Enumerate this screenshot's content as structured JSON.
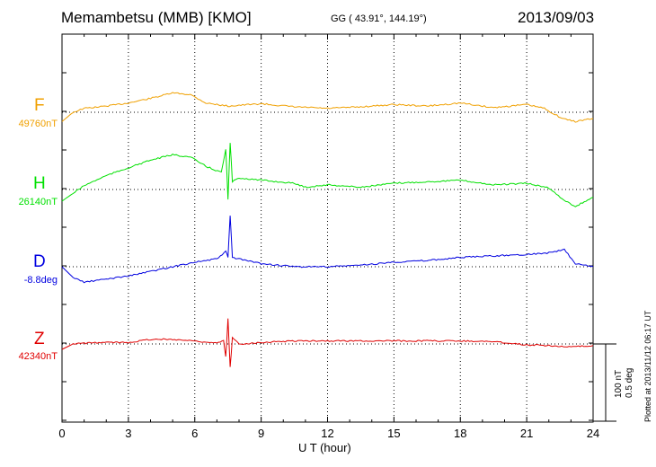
{
  "header": {
    "station": "Memambetsu (MMB)  [KMO]",
    "coords": "GG ( 43.91°, 144.19°)",
    "date": "2013/09/03"
  },
  "scale": {
    "nt_label": "100 nT",
    "deg_label": "0.5 deg"
  },
  "plotted": "Plotted at 2013/11/12 06:17 UT",
  "colors": {
    "F": "#f0a000",
    "H": "#00e000",
    "D": "#0000e0",
    "Z": "#e00000"
  },
  "chart_data": {
    "type": "line",
    "title": "Memambetsu (MMB)  [KMO]",
    "xlabel": "U T (hour)",
    "ylabel": "",
    "xlim": [
      0,
      24
    ],
    "x_ticks": [
      "0",
      "3",
      "6",
      "9",
      "12",
      "15",
      "18",
      "21",
      "24"
    ],
    "grid": true,
    "series": [
      {
        "name": "F",
        "baseline": "49760nT",
        "x": [
          0,
          0.5,
          1,
          2,
          3,
          4,
          5,
          5.8,
          6.5,
          7.5,
          9,
          10.5,
          12,
          13.5,
          15,
          16.5,
          18,
          19.5,
          21,
          21.8,
          22.6,
          23.2,
          24
        ],
        "values": [
          49748,
          49760,
          49765,
          49768,
          49772,
          49778,
          49785,
          49783,
          49772,
          49768,
          49771,
          49767,
          49765,
          49767,
          49770,
          49768,
          49772,
          49766,
          49770,
          49765,
          49752,
          49748,
          49752
        ]
      },
      {
        "name": "H",
        "baseline": "26140nT",
        "x": [
          0,
          0.5,
          1,
          2,
          3,
          4,
          5,
          5.8,
          6.5,
          7.2,
          7.4,
          7.5,
          7.6,
          7.7,
          8,
          9,
          10.5,
          11,
          12,
          13.5,
          15,
          16.5,
          18,
          19.5,
          21,
          22,
          22.6,
          23.2,
          24
        ],
        "values": [
          26125,
          26135,
          26145,
          26158,
          26168,
          26178,
          26185,
          26182,
          26170,
          26162,
          26192,
          26128,
          26200,
          26150,
          26155,
          26152,
          26148,
          26143,
          26146,
          26143,
          26148,
          26150,
          26152,
          26146,
          26148,
          26142,
          26128,
          26118,
          26130
        ]
      },
      {
        "name": "D",
        "baseline": "-8.8deg",
        "x": [
          0,
          0.5,
          1,
          2,
          3,
          4,
          5,
          6,
          7,
          7.4,
          7.5,
          7.6,
          7.7,
          8,
          9,
          10.5,
          12,
          13.5,
          15,
          16.5,
          18,
          19.5,
          21,
          22,
          22.7,
          23.2,
          24
        ],
        "values": [
          -8.8,
          -8.87,
          -8.9,
          -8.88,
          -8.86,
          -8.83,
          -8.8,
          -8.77,
          -8.75,
          -8.7,
          -8.74,
          -8.47,
          -8.74,
          -8.75,
          -8.78,
          -8.8,
          -8.8,
          -8.79,
          -8.77,
          -8.76,
          -8.74,
          -8.73,
          -8.72,
          -8.71,
          -8.69,
          -8.78,
          -8.8
        ]
      },
      {
        "name": "Z",
        "baseline": "42340nT",
        "x": [
          0,
          0.5,
          1,
          2,
          3,
          4,
          5,
          6,
          7,
          7.3,
          7.4,
          7.5,
          7.6,
          7.7,
          8,
          9,
          10.5,
          12,
          13.5,
          15,
          16.5,
          18,
          19.5,
          21,
          22,
          23,
          24
        ],
        "values": [
          42333,
          42340,
          42341,
          42342,
          42342,
          42346,
          42346,
          42344,
          42341,
          42344,
          42323,
          42372,
          42310,
          42348,
          42340,
          42342,
          42344,
          42344,
          42344,
          42344,
          42344,
          42344,
          42343,
          42339,
          42338,
          42336,
          42338
        ]
      }
    ]
  }
}
